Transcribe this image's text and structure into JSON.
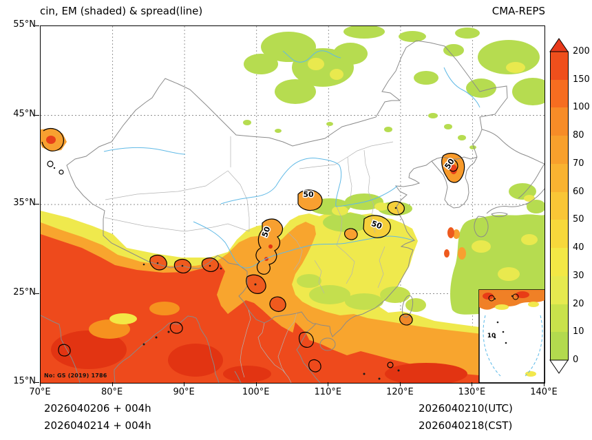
{
  "header": {
    "title": "cin, EM (shaded) & spread(line)",
    "model": "CMA-REPS"
  },
  "axes": {
    "x_ticks": [
      "70°E",
      "80°E",
      "90°E",
      "100°E",
      "110°E",
      "120°E",
      "130°E",
      "140°E"
    ],
    "y_ticks": [
      "55°N",
      "45°N",
      "35°N",
      "25°N",
      "15°N"
    ]
  },
  "colorbar": {
    "labels": [
      "200",
      "150",
      "100",
      "80",
      "70",
      "60",
      "50",
      "40",
      "30",
      "20",
      "10",
      "0"
    ],
    "segment_colors_bottom_to_top": [
      "#b3da4e",
      "#c9e24b",
      "#e6ea4f",
      "#f3e845",
      "#f7d83b",
      "#f9c636",
      "#f9b331",
      "#f8a02c",
      "#f78c27",
      "#f66d20",
      "#ef4f1c"
    ],
    "over_color": "#e8391b",
    "under_color": "#ffffff"
  },
  "contours": {
    "spread_label": "50"
  },
  "inset": {
    "label": "10"
  },
  "watermark": "No: GS (2019) 1786",
  "footer": {
    "init_utc": "2026040206  +  004h",
    "init_cst": "2026040214  +  004h",
    "valid_utc": "2026040210(UTC)",
    "valid_cst": "2026040218(CST)"
  },
  "chart_data": {
    "type": "heatmap",
    "title": "cin, EM (shaded) & spread(line)",
    "model": "CMA-REPS",
    "field": "CIN ensemble mean (shaded) with ensemble spread contour lines",
    "x_axis": {
      "label": "longitude",
      "unit": "°E",
      "range": [
        70,
        140
      ],
      "ticks": [
        70,
        80,
        90,
        100,
        110,
        120,
        130,
        140
      ]
    },
    "y_axis": {
      "label": "latitude",
      "unit": "°N",
      "range": [
        15,
        55
      ],
      "ticks": [
        15,
        25,
        35,
        45,
        55
      ]
    },
    "grid": "dashed gray graticule every 10 degrees",
    "legend_position": "right colorbar with over/under arrows",
    "shading_levels": [
      0,
      10,
      20,
      30,
      40,
      50,
      60,
      70,
      80,
      100,
      150,
      200
    ],
    "spread_contour_level": 50,
    "inset_contour_level": 10,
    "init_time": "2026040206 UTC / 2026040214 CST",
    "lead_hours": 4,
    "valid_time": "2026040210 UTC / 2026040218 CST",
    "regions_high_values": [
      "Arabian Sea / India lowlands: 150-200+",
      "Bay of Bengal, Myanmar and Indochina: 150-200+",
      "South China Sea and western Pacific south of 22N: 100-200+",
      "Sichuan / Hengduan mountain rim: 80-150 patches with spread-50 contours",
      "Central China (105-118E, 33-36N): orange 80-100 patches with spread-50 contours",
      "Korean peninsula east coast around 128E,40N: ~100 patch with spread-50 contour",
      "Far northwest corner 70-74E, 41-43N: small 100-150 patch"
    ],
    "regions_low_values": [
      "Tibetan Plateau: unshaded (no CIN)",
      "North China, Gobi and Mongolia: mostly clear, scattered 0-20 green",
      "Northeast China / Amur region: scattered 0-20 green",
      "Sea of Japan / western Pacific 128-140E, 23-33N: broad 0-20 green",
      "Yellow Sea and East China Sea: mostly unshaded"
    ]
  }
}
